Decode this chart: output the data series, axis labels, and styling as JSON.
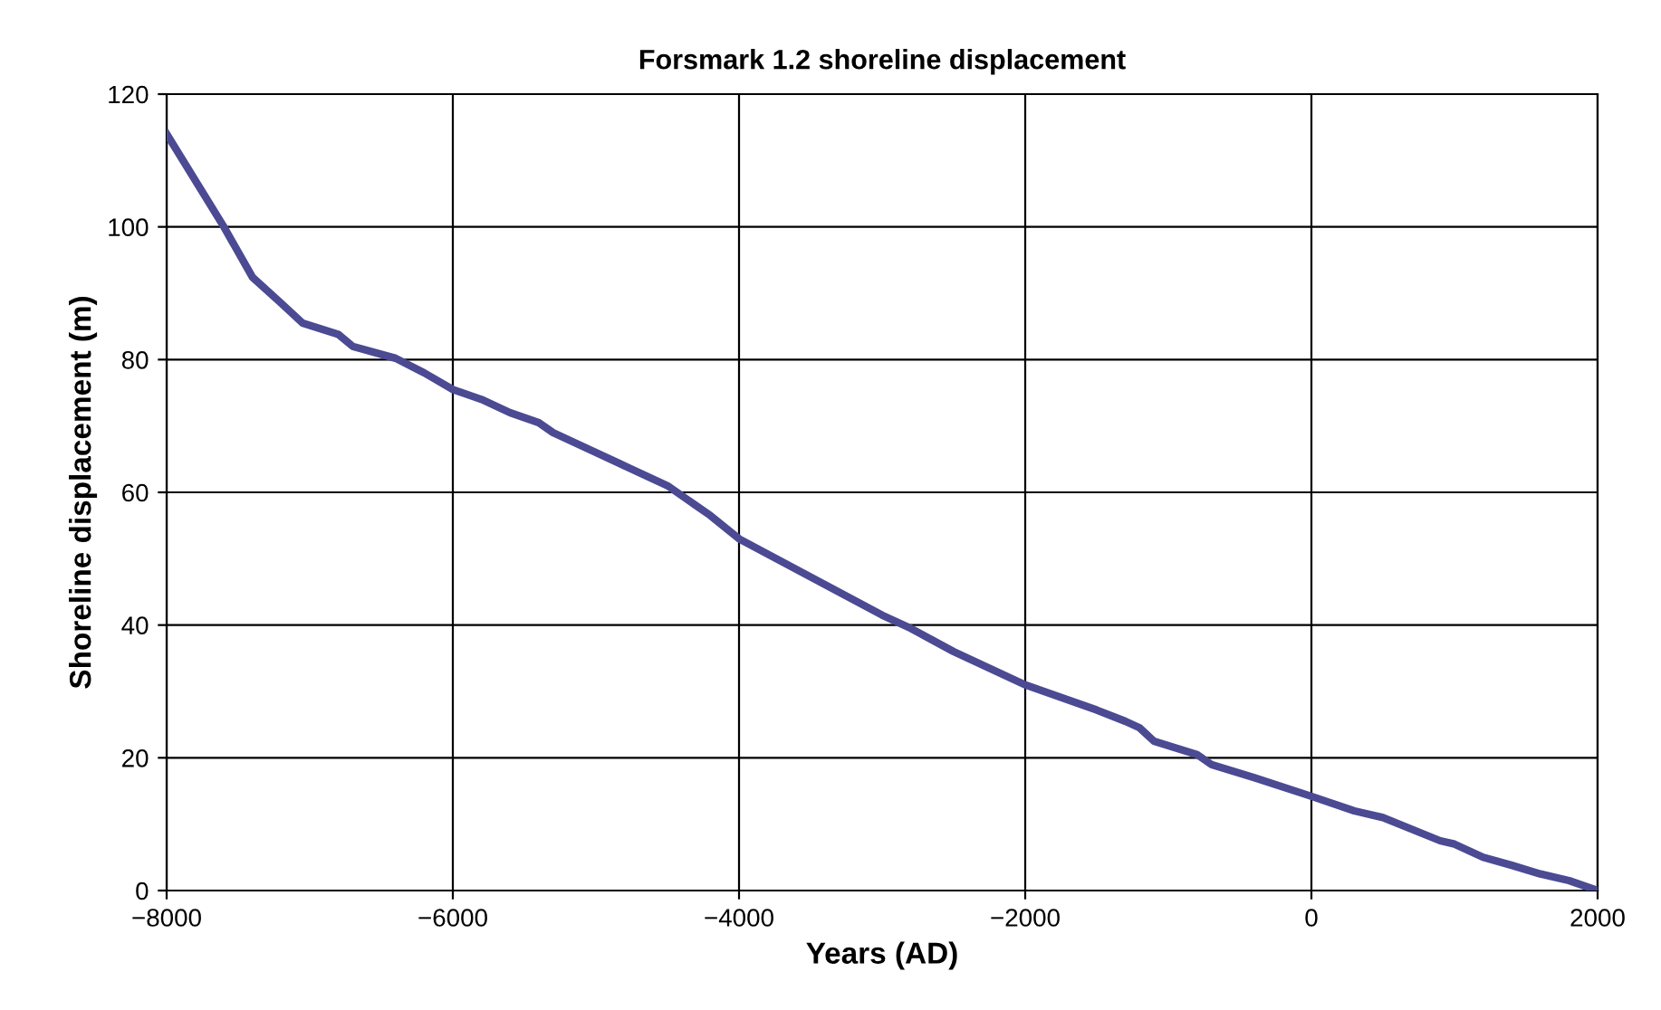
{
  "chart_data": {
    "type": "line",
    "title": "Forsmark 1.2 shoreline displacement",
    "xlabel": "Years (AD)",
    "ylabel": "Shoreline displacement (m)",
    "x": [
      -8000,
      -7600,
      -7400,
      -7200,
      -7050,
      -6800,
      -6700,
      -6400,
      -6200,
      -6000,
      -5800,
      -5600,
      -5400,
      -5300,
      -5000,
      -4800,
      -4500,
      -4200,
      -4000,
      -3000,
      -2800,
      -2500,
      -2000,
      -1500,
      -1300,
      -1200,
      -1100,
      -800,
      -700,
      -400,
      0,
      300,
      500,
      900,
      1000,
      1200,
      1400,
      1600,
      1800,
      2000
    ],
    "series": [
      {
        "color": "#4b4a93",
        "values": [
          114,
          100,
          92.4,
          88.5,
          85.5,
          83.8,
          82,
          80.2,
          78,
          75.5,
          74,
          72,
          70.5,
          69,
          66,
          64,
          61,
          56.5,
          53,
          41.5,
          39.5,
          36,
          31,
          27.2,
          25.5,
          24.5,
          22.5,
          20.5,
          19,
          17,
          14.2,
          12,
          11,
          7.5,
          7,
          5,
          3.8,
          2.5,
          1.5,
          0
        ]
      }
    ],
    "xlim": [
      -8000,
      2000
    ],
    "xticks": [
      {
        "value": -8000,
        "label": "−8000"
      },
      {
        "value": -6000,
        "label": "−6000"
      },
      {
        "value": -4000,
        "label": "−4000"
      },
      {
        "value": -2000,
        "label": "−2000"
      },
      0,
      2000
    ],
    "ylim": [
      0,
      120
    ],
    "yticks": [
      0,
      20,
      40,
      60,
      80,
      100,
      120
    ],
    "grid": true,
    "legend": false,
    "marker": "none",
    "line_style": "solid"
  }
}
